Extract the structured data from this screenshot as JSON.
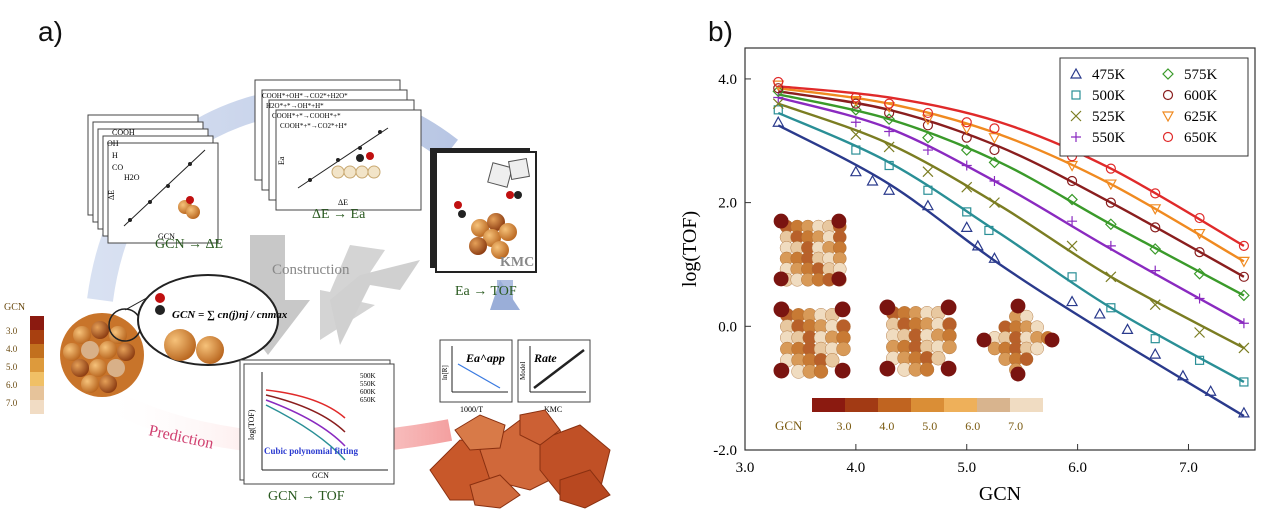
{
  "panel_a": {
    "label": "a)",
    "card_dE": {
      "rows": [
        "COOH",
        "OH",
        "H",
        "CO",
        "H2O"
      ],
      "ylabel": "ΔE",
      "xlabel": "GCN"
    },
    "card_Ea": {
      "rows": [
        "COOH*+OH*→CO2*+H2O*",
        "H2O*+*→OH*+H*",
        "COOH*+*→COOH*+*",
        "COOH*+*→CO2*+H*"
      ],
      "ylabel": "Ea",
      "xlabel": "ΔE"
    },
    "kmc_label": "KMC",
    "steps": {
      "gcn_to_de": "GCN → ΔE",
      "de_to_ea": "ΔE → Ea",
      "ea_to_tof": "Ea → TOF",
      "gcn_to_tof": "GCN → TOF"
    },
    "construction": "Construction",
    "prediction": "Prediction",
    "gcn_formula": "GCN = ∑ cn(j)nj / cnmax",
    "gcn_scale": {
      "title": "GCN",
      "ticks": [
        "3.0",
        "4.0",
        "5.0",
        "6.0",
        "7.0"
      ],
      "colors": [
        "#8b1a10",
        "#a84010",
        "#c2701e",
        "#dd9a3c",
        "#f0c066",
        "#e6c39a",
        "#f1dcc4"
      ]
    },
    "mini_plot": {
      "ylabel": "log(TOF)",
      "xlabel": "GCN",
      "annotation": "Cubic polynomial fitting",
      "legend": [
        "500K",
        "550K",
        "600K",
        "650K"
      ]
    },
    "arrhenius": {
      "ylabel": "ln[R]",
      "xlabel": "1000/T",
      "title": "Ea^app"
    },
    "parity": {
      "ylabel": "Model",
      "xlabel": "KMC",
      "title": "Rate"
    }
  },
  "chart_data": {
    "type": "scatter",
    "panel_label": "b)",
    "xlabel": "GCN",
    "ylabel": "log(TOF)",
    "xlim": [
      3.0,
      7.6
    ],
    "ylim": [
      -2.0,
      4.5
    ],
    "xticks": [
      "3.0",
      "4.0",
      "5.0",
      "6.0",
      "7.0"
    ],
    "yticks": [
      "-2.0",
      "0.0",
      "2.0",
      "4.0"
    ],
    "legend_position": "top-right",
    "gcn_colorbar": {
      "title": "GCN",
      "ticks": [
        "3.0",
        "4.0",
        "5.0",
        "6.0",
        "7.0"
      ],
      "colors": [
        "#8b1a10",
        "#a23a14",
        "#c06420",
        "#da8e36",
        "#eeb05a",
        "#d8b48e",
        "#f0dcc2"
      ]
    },
    "series": [
      {
        "name": "475K",
        "color": "#2a3a8c",
        "marker": "triangle",
        "fit": {
          "x": [
            3.3,
            4.3,
            5.3,
            6.3,
            7.5
          ],
          "y": [
            3.25,
            2.3,
            1.0,
            -0.15,
            -1.45
          ]
        },
        "points": {
          "x": [
            3.3,
            4.0,
            4.15,
            4.3,
            4.65,
            5.0,
            5.1,
            5.25,
            5.95,
            6.2,
            6.45,
            6.7,
            6.95,
            7.2,
            7.5
          ],
          "y": [
            3.3,
            2.5,
            2.35,
            2.2,
            1.95,
            1.6,
            1.3,
            1.1,
            0.4,
            0.2,
            -0.05,
            -0.45,
            -0.8,
            -1.05,
            -1.4
          ]
        }
      },
      {
        "name": "500K",
        "color": "#2a8f96",
        "marker": "square",
        "fit": {
          "x": [
            3.3,
            4.3,
            5.3,
            6.3,
            7.5
          ],
          "y": [
            3.45,
            2.65,
            1.5,
            0.3,
            -0.9
          ]
        },
        "points": {
          "x": [
            3.3,
            4.0,
            4.3,
            4.65,
            5.0,
            5.2,
            5.95,
            6.3,
            6.7,
            7.1,
            7.5
          ],
          "y": [
            3.5,
            2.85,
            2.6,
            2.2,
            1.85,
            1.55,
            0.8,
            0.3,
            -0.2,
            -0.55,
            -0.9
          ]
        }
      },
      {
        "name": "525K",
        "color": "#7b7d22",
        "marker": "x",
        "fit": {
          "x": [
            3.3,
            4.3,
            5.3,
            6.3,
            7.5
          ],
          "y": [
            3.6,
            2.95,
            1.95,
            0.8,
            -0.35
          ]
        },
        "points": {
          "x": [
            3.3,
            4.0,
            4.3,
            4.65,
            5.0,
            5.25,
            5.95,
            6.3,
            6.7,
            7.1,
            7.5
          ],
          "y": [
            3.6,
            3.1,
            2.9,
            2.5,
            2.25,
            2.0,
            1.3,
            0.8,
            0.35,
            -0.1,
            -0.35
          ]
        }
      },
      {
        "name": "550K",
        "color": "#8a2ac0",
        "marker": "plus",
        "fit": {
          "x": [
            3.3,
            4.3,
            5.3,
            6.3,
            7.5
          ],
          "y": [
            3.7,
            3.2,
            2.3,
            1.25,
            0.05
          ]
        },
        "points": {
          "x": [
            3.3,
            4.0,
            4.3,
            4.65,
            5.0,
            5.25,
            5.95,
            6.3,
            6.7,
            7.1,
            7.5
          ],
          "y": [
            3.7,
            3.3,
            3.15,
            2.85,
            2.6,
            2.35,
            1.7,
            1.3,
            0.9,
            0.45,
            0.05
          ]
        }
      },
      {
        "name": "575K",
        "color": "#3a9a2a",
        "marker": "diamond",
        "fit": {
          "x": [
            3.3,
            4.3,
            5.3,
            6.3,
            7.5
          ],
          "y": [
            3.75,
            3.35,
            2.65,
            1.65,
            0.5
          ]
        },
        "points": {
          "x": [
            3.3,
            4.0,
            4.3,
            4.65,
            5.0,
            5.25,
            5.95,
            6.3,
            6.7,
            7.1,
            7.5
          ],
          "y": [
            3.8,
            3.5,
            3.35,
            3.05,
            2.85,
            2.65,
            2.05,
            1.65,
            1.25,
            0.85,
            0.5
          ]
        }
      },
      {
        "name": "600K",
        "color": "#8a1e1e",
        "marker": "circle",
        "fit": {
          "x": [
            3.3,
            4.3,
            5.3,
            6.3,
            7.5
          ],
          "y": [
            3.8,
            3.5,
            2.9,
            2.0,
            0.8
          ]
        },
        "points": {
          "x": [
            3.3,
            4.0,
            4.3,
            4.65,
            5.0,
            5.25,
            5.95,
            6.3,
            6.7,
            7.1,
            7.5
          ],
          "y": [
            3.85,
            3.6,
            3.45,
            3.25,
            3.05,
            2.85,
            2.35,
            2.0,
            1.6,
            1.2,
            0.8
          ]
        }
      },
      {
        "name": "625K",
        "color": "#f08a20",
        "marker": "triangle-down",
        "fit": {
          "x": [
            3.3,
            4.3,
            5.3,
            6.3,
            7.5
          ],
          "y": [
            3.85,
            3.6,
            3.1,
            2.3,
            1.05
          ]
        },
        "points": {
          "x": [
            3.3,
            4.0,
            4.3,
            4.65,
            5.0,
            5.25,
            5.95,
            6.3,
            6.7,
            7.1,
            7.5
          ],
          "y": [
            3.9,
            3.65,
            3.55,
            3.35,
            3.2,
            3.05,
            2.6,
            2.3,
            1.9,
            1.5,
            1.05
          ]
        }
      },
      {
        "name": "650K",
        "color": "#e02a2a",
        "marker": "circle",
        "fit": {
          "x": [
            3.3,
            4.3,
            5.3,
            6.3,
            7.5
          ],
          "y": [
            3.88,
            3.7,
            3.3,
            2.55,
            1.3
          ]
        },
        "points": {
          "x": [
            3.3,
            4.0,
            4.3,
            4.65,
            5.0,
            5.25,
            5.95,
            6.3,
            6.7,
            7.1,
            7.5
          ],
          "y": [
            3.95,
            3.7,
            3.6,
            3.45,
            3.3,
            3.2,
            2.75,
            2.55,
            2.15,
            1.75,
            1.3
          ]
        }
      }
    ]
  }
}
